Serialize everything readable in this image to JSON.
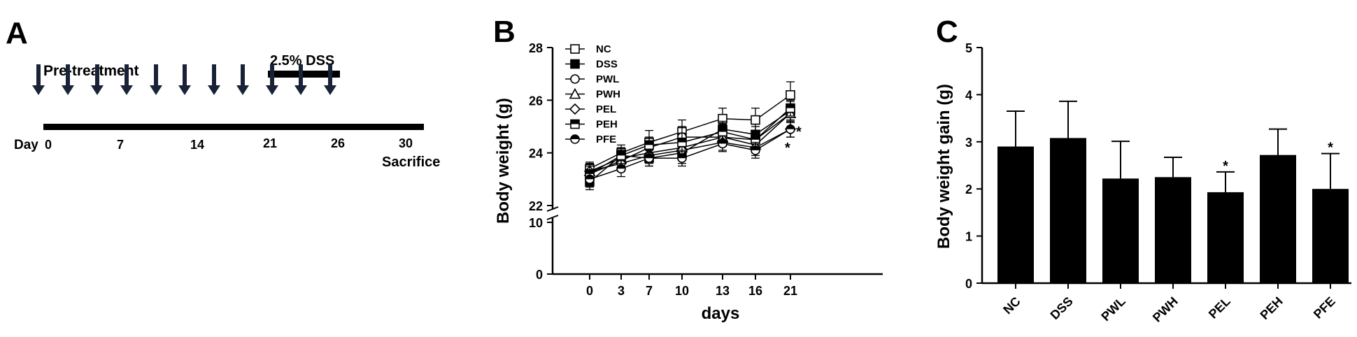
{
  "panel_a": {
    "letter": "A",
    "pretreatment_label": "Pre-treatment",
    "dss_label": "2.5% DSS",
    "day_label": "Day",
    "day_ticks": [
      "0",
      "7",
      "14",
      "21",
      "26",
      "30"
    ],
    "sacrifice_label": "Sacrifice"
  },
  "panel_b": {
    "letter": "B"
  },
  "panel_c": {
    "letter": "C"
  },
  "chart_data": [
    {
      "type": "line",
      "xlabel": "days",
      "ylabel": "Body weight (g)",
      "x": [
        0,
        3,
        7,
        10,
        13,
        16,
        21
      ],
      "x_ticks": [
        "0",
        "3",
        "7",
        "10",
        "13",
        "16",
        "21"
      ],
      "y_axis_broken": true,
      "y_ticks": [
        "0",
        "10",
        "22",
        "24",
        "26",
        "28"
      ],
      "ylim_lower": [
        0,
        10
      ],
      "ylim_upper": [
        22,
        28
      ],
      "legend_position": "top-left",
      "series": [
        {
          "name": "NC",
          "marker": "square-open",
          "values": [
            23.4,
            24.0,
            24.4,
            24.8,
            25.3,
            25.25,
            26.2
          ],
          "errors": [
            0.25,
            0.3,
            0.45,
            0.45,
            0.4,
            0.45,
            0.5
          ]
        },
        {
          "name": "DSS",
          "marker": "square-filled",
          "values": [
            22.9,
            23.9,
            23.8,
            24.0,
            24.9,
            24.7,
            25.6
          ],
          "errors": [
            0.3,
            0.3,
            0.3,
            0.4,
            0.3,
            0.3,
            0.35
          ]
        },
        {
          "name": "PWL",
          "marker": "circle-open",
          "values": [
            23.2,
            23.7,
            24.2,
            24.6,
            24.6,
            24.5,
            25.5
          ],
          "errors": [
            0.3,
            0.3,
            0.35,
            0.4,
            0.35,
            0.35,
            0.35
          ]
        },
        {
          "name": "PWH",
          "marker": "triangle-open",
          "values": [
            23.3,
            23.8,
            24.0,
            24.2,
            24.6,
            24.3,
            25.5
          ],
          "errors": [
            0.3,
            0.3,
            0.3,
            0.35,
            0.3,
            0.3,
            0.35
          ]
        },
        {
          "name": "PEL",
          "marker": "diamond-open",
          "values": [
            23.3,
            23.6,
            23.9,
            24.1,
            24.4,
            24.2,
            24.9
          ],
          "errors": [
            0.3,
            0.3,
            0.3,
            0.3,
            0.3,
            0.3,
            0.3
          ]
        },
        {
          "name": "PEH",
          "marker": "square-half",
          "values": [
            23.2,
            23.9,
            24.3,
            24.4,
            24.8,
            24.5,
            25.7
          ],
          "errors": [
            0.3,
            0.3,
            0.3,
            0.35,
            0.3,
            0.3,
            0.3
          ]
        },
        {
          "name": "PFE",
          "marker": "circle-half",
          "values": [
            23.0,
            23.4,
            23.8,
            23.8,
            24.35,
            24.1,
            24.9
          ],
          "errors": [
            0.3,
            0.3,
            0.3,
            0.3,
            0.3,
            0.3,
            0.3
          ]
        }
      ],
      "annotations": [
        {
          "text": "*",
          "near": "PEL",
          "x": 21
        },
        {
          "text": "*",
          "near": "PFE",
          "x": 21
        }
      ]
    },
    {
      "type": "bar",
      "ylabel": "Body weight gain (g)",
      "categories": [
        "NC",
        "DSS",
        "PWL",
        "PWH",
        "PEL",
        "PEH",
        "PFE"
      ],
      "values": [
        2.9,
        3.08,
        2.22,
        2.25,
        1.93,
        2.72,
        2.0
      ],
      "errors": [
        0.75,
        0.78,
        0.79,
        0.42,
        0.43,
        0.55,
        0.75
      ],
      "ylim": [
        0,
        5
      ],
      "y_ticks": [
        "0",
        "1",
        "2",
        "3",
        "4",
        "5"
      ],
      "significant": [
        false,
        false,
        false,
        false,
        true,
        false,
        true
      ],
      "significance_mark": "*",
      "bar_color": "#000000"
    }
  ]
}
